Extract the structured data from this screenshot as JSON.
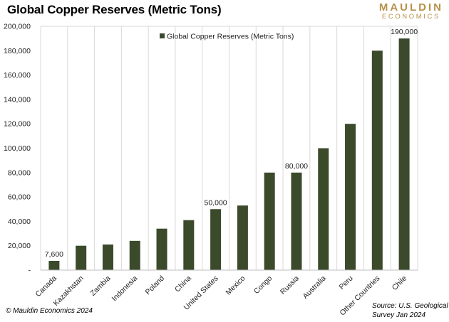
{
  "logo": {
    "line1": "MAULDIN",
    "line2": "ECONOMICS"
  },
  "footer": {
    "copyright": "© Mauldin Economics 2024",
    "source_line1": "Source: U.S. Geological",
    "source_line2": "Survey Jan 2024"
  },
  "chart_data": {
    "type": "bar",
    "title": "Global Copper Reserves (Metric Tons)",
    "legend": {
      "entries": [
        "Global Copper Reserves (Metric Tons)"
      ],
      "position": "top"
    },
    "categories": [
      "Canada",
      "Kazakhstan",
      "Zambia",
      "Indonesia",
      "Poland",
      "China",
      "United States",
      "Mexico",
      "Congo",
      "Russia",
      "Australia",
      "Peru",
      "Other Countries",
      "Chile"
    ],
    "series": [
      {
        "name": "Global Copper Reserves (Metric Tons)",
        "color": "#3a4a2b",
        "values": [
          7600,
          20000,
          21000,
          24000,
          34000,
          41000,
          50000,
          53000,
          80000,
          80000,
          100000,
          120000,
          180000,
          190000
        ]
      }
    ],
    "data_labels": [
      {
        "category": "Canada",
        "text": "7,600"
      },
      {
        "category": "United States",
        "text": "50,000"
      },
      {
        "category": "Russia",
        "text": "80,000"
      },
      {
        "category": "Chile",
        "text": "190,000"
      }
    ],
    "ylim": [
      0,
      200000
    ],
    "yticks": [
      0,
      20000,
      40000,
      60000,
      80000,
      100000,
      120000,
      140000,
      160000,
      180000,
      200000
    ],
    "ytick_labels": [
      "-",
      "20,000",
      "40,000",
      "60,000",
      "80,000",
      "100,000",
      "120,000",
      "140,000",
      "160,000",
      "180,000",
      "200,000"
    ],
    "grid": "vertical",
    "xlabel": "",
    "ylabel": ""
  }
}
